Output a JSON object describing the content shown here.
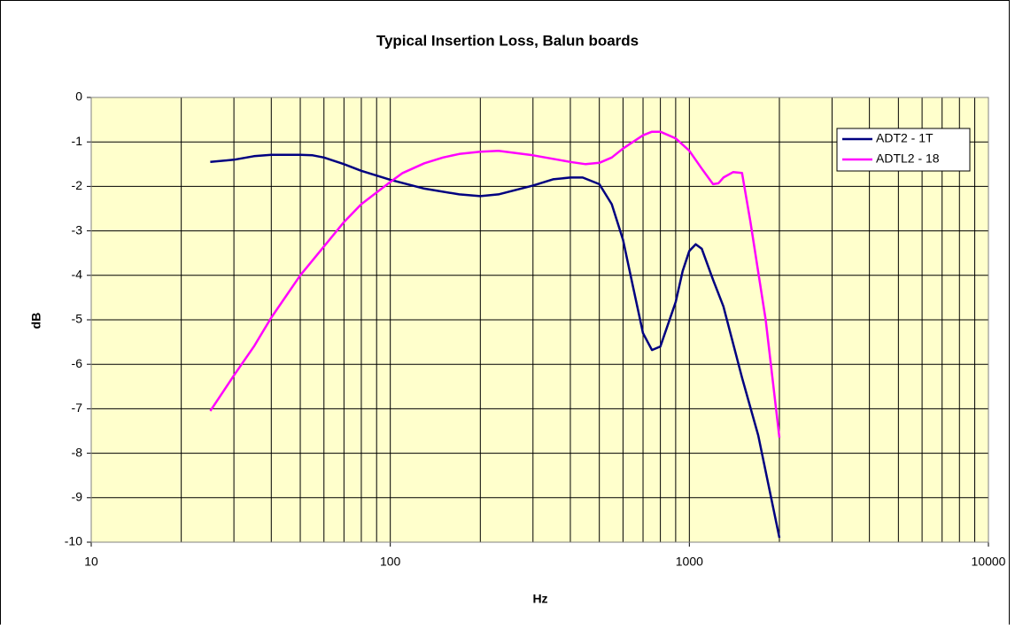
{
  "chart_data": {
    "type": "line",
    "title": "Typical Insertion Loss, Balun boards",
    "xlabel": "Hz",
    "ylabel": "dB",
    "xscale": "log",
    "xlim": [
      10,
      10000
    ],
    "xticks": [
      10,
      100,
      1000,
      10000
    ],
    "ylim": [
      -10,
      0
    ],
    "yticks": [
      -10,
      -9,
      -8,
      -7,
      -6,
      -5,
      -4,
      -3,
      -2,
      -1,
      0
    ],
    "grid": true,
    "legend": "upper right",
    "plot_background": "#ffffcc",
    "series": [
      {
        "name": "ADT2 - 1T",
        "color": "#000080",
        "x": [
          25,
          30,
          35,
          40,
          50,
          55,
          60,
          70,
          80,
          100,
          130,
          170,
          200,
          230,
          300,
          350,
          400,
          440,
          500,
          550,
          600,
          650,
          700,
          750,
          800,
          900,
          950,
          1000,
          1050,
          1100,
          1200,
          1300,
          1500,
          1700,
          2000
        ],
        "values": [
          -1.45,
          -1.4,
          -1.32,
          -1.29,
          -1.29,
          -1.3,
          -1.35,
          -1.5,
          -1.65,
          -1.85,
          -2.05,
          -2.18,
          -2.22,
          -2.18,
          -1.98,
          -1.84,
          -1.8,
          -1.8,
          -1.95,
          -2.4,
          -3.2,
          -4.3,
          -5.3,
          -5.68,
          -5.6,
          -4.6,
          -3.9,
          -3.45,
          -3.3,
          -3.4,
          -4.1,
          -4.7,
          -6.3,
          -7.6,
          -9.9
        ]
      },
      {
        "name": "ADTL2 - 18",
        "color": "#ff00ff",
        "x": [
          25,
          30,
          35,
          40,
          50,
          60,
          70,
          80,
          100,
          110,
          130,
          150,
          170,
          200,
          230,
          300,
          400,
          450,
          500,
          550,
          600,
          700,
          750,
          800,
          900,
          1000,
          1100,
          1200,
          1250,
          1300,
          1400,
          1500,
          1600,
          1800,
          2000
        ],
        "values": [
          -7.05,
          -6.25,
          -5.6,
          -4.95,
          -4.0,
          -3.35,
          -2.8,
          -2.4,
          -1.9,
          -1.7,
          -1.48,
          -1.35,
          -1.27,
          -1.22,
          -1.2,
          -1.3,
          -1.45,
          -1.5,
          -1.47,
          -1.35,
          -1.15,
          -0.85,
          -0.77,
          -0.77,
          -0.92,
          -1.2,
          -1.6,
          -1.95,
          -1.93,
          -1.8,
          -1.68,
          -1.7,
          -2.8,
          -5.0,
          -7.65
        ]
      }
    ]
  }
}
